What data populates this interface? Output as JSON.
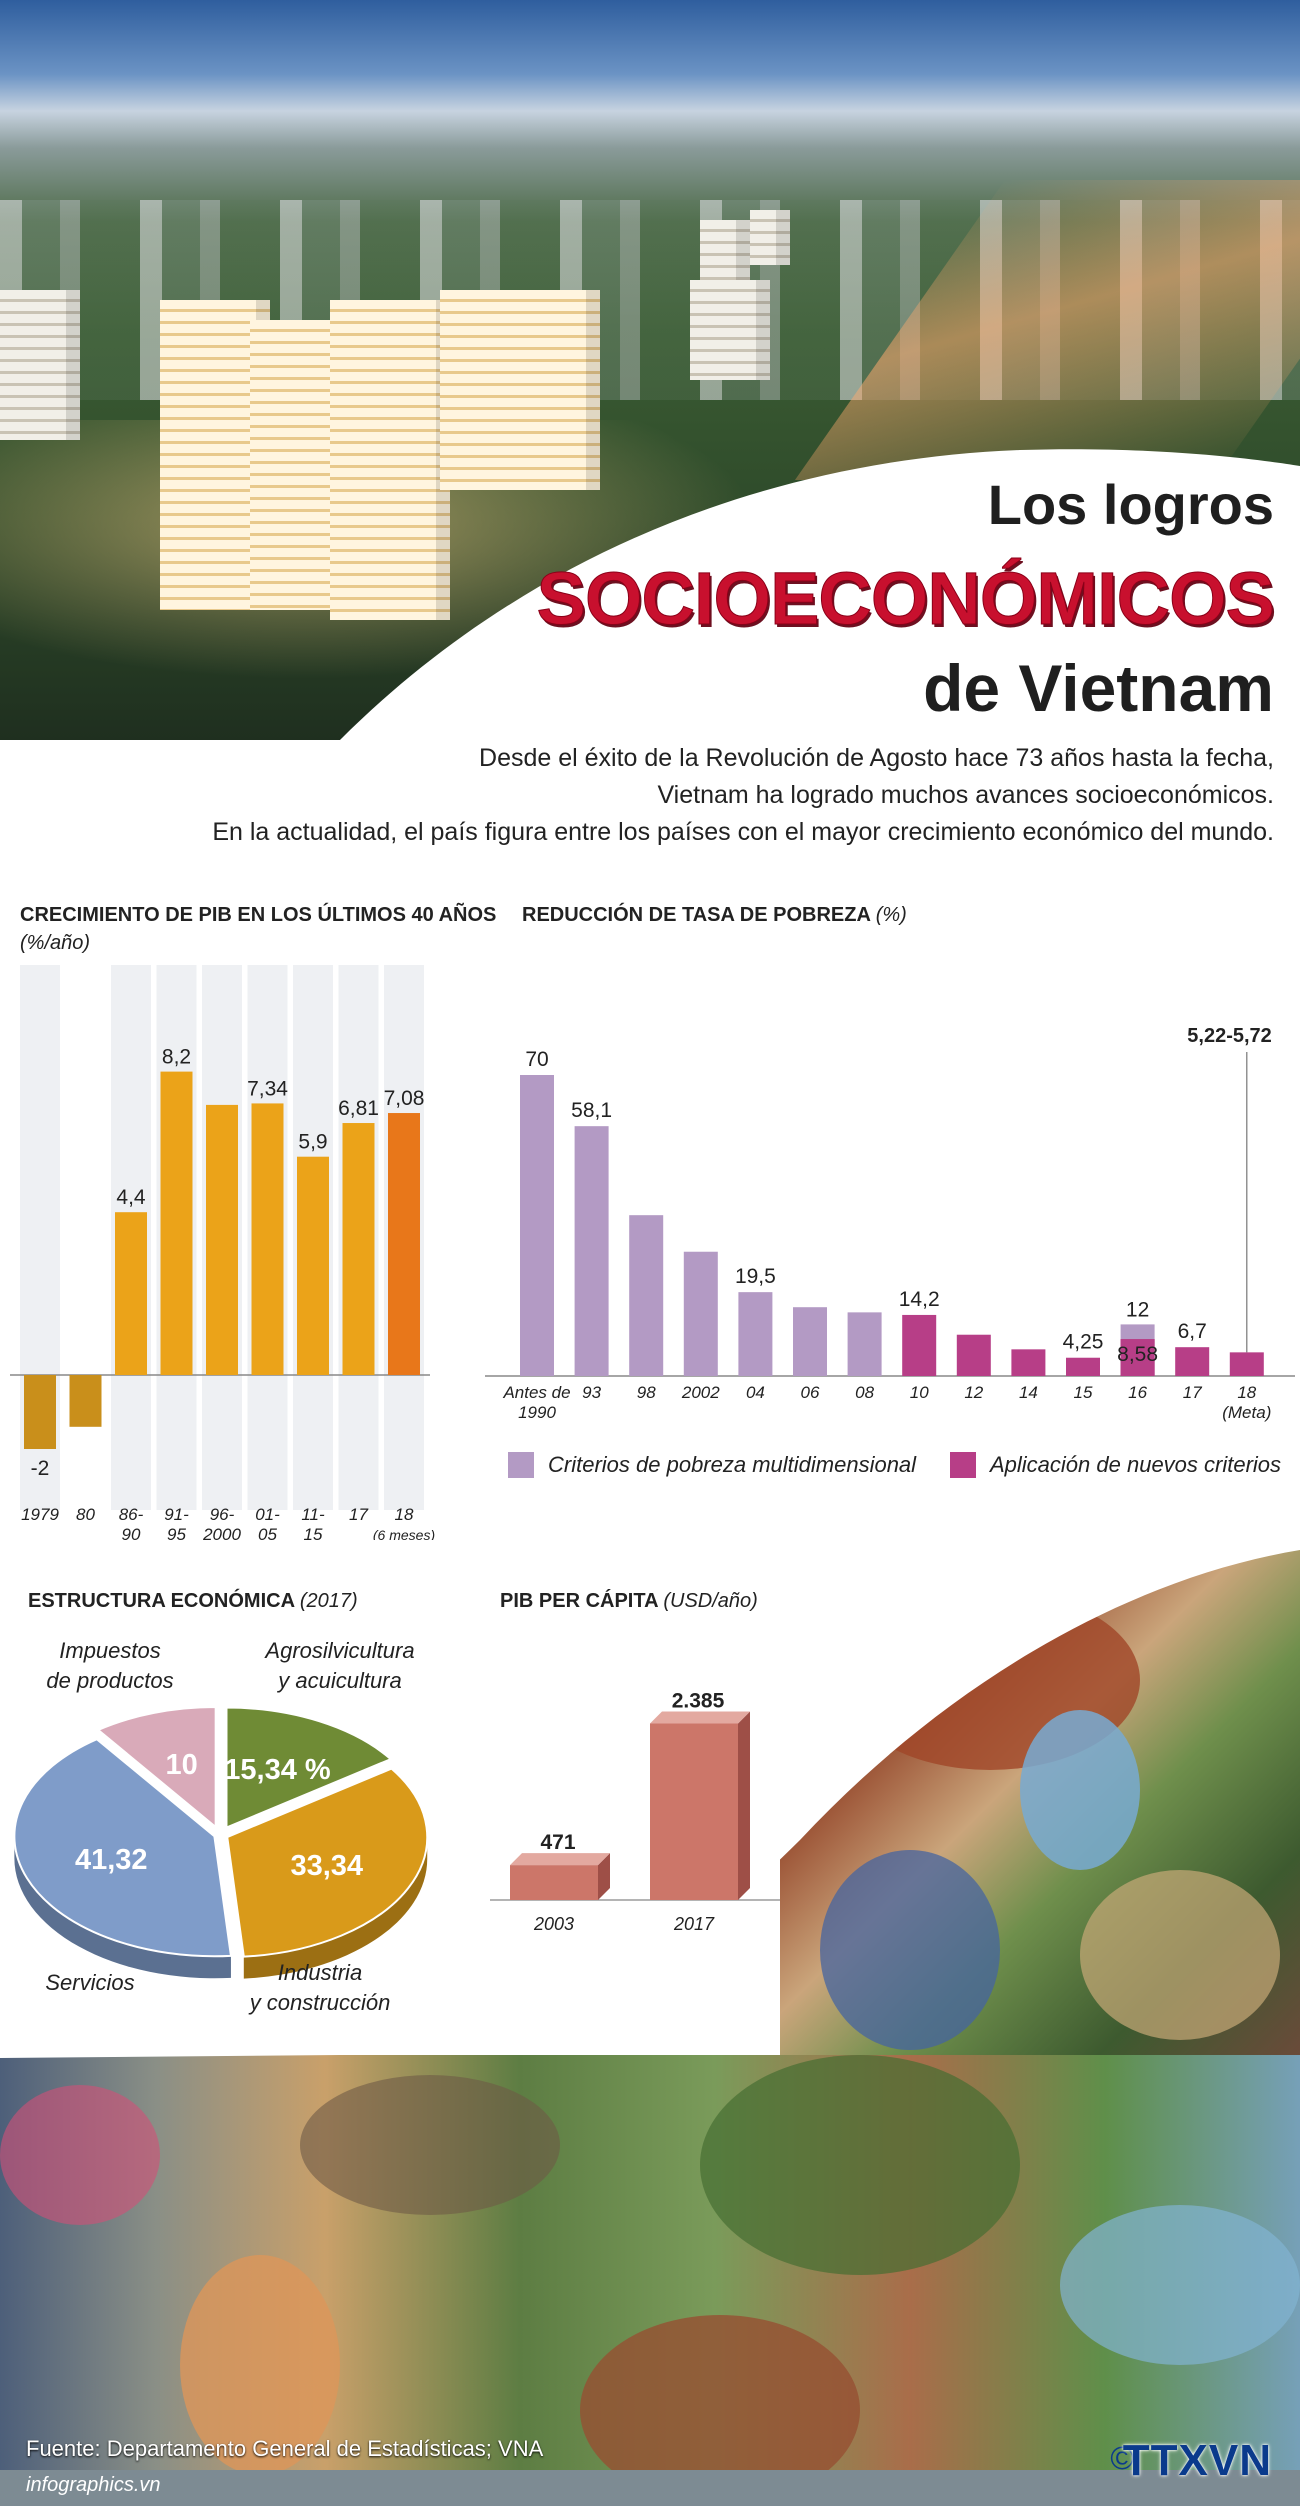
{
  "header": {
    "title_line1": "Los logros",
    "title_line2": "SOCIOECONÓMICOS",
    "title_line3": "de Vietnam",
    "intro": [
      "Desde el éxito de la Revolución de Agosto hace 73 años hasta la fecha,",
      "Vietnam ha logrado muchos avances socioeconómicos.",
      "En la actualidad, el país figura entre los países con el mayor crecimiento económico del mundo."
    ]
  },
  "sections": {
    "gdp_title": "CRECIMIENTO DE PIB EN LOS ÚLTIMOS 40 AÑOS",
    "gdp_unit": "(%/año)",
    "poverty_title": "REDUCCIÓN DE TASA DE POBREZA",
    "poverty_unit": "(%)",
    "structure_title": "ESTRUCTURA ECONÓMICA",
    "structure_year": "(2017)",
    "percapita_title": "PIB PER CÁPITA",
    "percapita_unit": "(USD/año)"
  },
  "chart_data": [
    {
      "id": "gdp",
      "type": "bar",
      "title": "CRECIMIENTO DE PIB EN LOS ÚLTIMOS 40 AÑOS",
      "ylabel": "(%/año)",
      "categories": [
        [
          "1979"
        ],
        [
          "80"
        ],
        [
          "86-",
          "90"
        ],
        [
          "91-",
          "95"
        ],
        [
          "96-",
          "2000"
        ],
        [
          "01-",
          "05"
        ],
        [
          "11-",
          "15"
        ],
        [
          "17"
        ],
        [
          "18",
          "(6 meses)"
        ]
      ],
      "values": [
        -2,
        -1.4,
        4.4,
        8.2,
        7.3,
        7.34,
        5.9,
        6.81,
        7.08
      ],
      "labels": [
        "-2",
        "",
        "4,4",
        "8,2",
        "",
        "7,34",
        "5,9",
        "6,81",
        "7,08"
      ],
      "ylim": [
        -2.6,
        9.4
      ],
      "colors": {
        "negative": "#c98f1b",
        "positive": "#eba319",
        "highlight": "#e8771a",
        "column_bg": "#eef0f3"
      }
    },
    {
      "id": "poverty",
      "type": "bar",
      "title": "REDUCCIÓN DE TASA DE POBREZA",
      "ylabel": "(%)",
      "categories": [
        [
          "Antes de",
          "1990"
        ],
        [
          "93"
        ],
        [
          "98"
        ],
        [
          "2002"
        ],
        [
          "04"
        ],
        [
          "06"
        ],
        [
          "08"
        ],
        [
          "10"
        ],
        [
          "12"
        ],
        [
          "14"
        ],
        [
          "15"
        ],
        [
          "16"
        ],
        [
          "17"
        ],
        [
          "18",
          "(Meta)"
        ]
      ],
      "series": [
        {
          "name": "Criterios de pobreza multidimensional",
          "color": "#b39ac4",
          "values": [
            70,
            58.1,
            37.4,
            28.9,
            19.5,
            16,
            14.8,
            null,
            null,
            null,
            null,
            12,
            null,
            null
          ]
        },
        {
          "name": "Aplicación de nuevos criterios",
          "color": "#b73e87",
          "values": [
            null,
            null,
            null,
            null,
            null,
            null,
            null,
            14.2,
            9.6,
            6.2,
            4.25,
            8.58,
            6.7,
            5.5
          ]
        }
      ],
      "labels": {
        "0": "70",
        "1": "58,1",
        "4": "19,5",
        "7": "14,2",
        "10": "4,25",
        "11_top": "12",
        "11_inner": "8,58",
        "12": "6,7"
      },
      "target_label": "5,22-5,72",
      "ylim": [
        0,
        80
      ]
    },
    {
      "id": "structure",
      "type": "pie",
      "title": "ESTRUCTURA ECONÓMICA",
      "subtitle": "(2017)",
      "slices": [
        {
          "name": [
            "Agrosilvicultura",
            "y acuicultura"
          ],
          "value": 15.34,
          "label": "15,34 %",
          "color": "#6f8b35"
        },
        {
          "name": [
            "Industria",
            "y construcción"
          ],
          "value": 33.34,
          "label": "33,34",
          "color": "#d99a1a"
        },
        {
          "name": [
            "Servicios"
          ],
          "value": 41.32,
          "label": "41,32",
          "color": "#7f9cc9"
        },
        {
          "name": [
            "Impuestos",
            "de productos"
          ],
          "value": 10,
          "label": "10",
          "color": "#d9aab9"
        }
      ]
    },
    {
      "id": "percapita",
      "type": "bar",
      "title": "PIB PER CÁPITA",
      "ylabel": "(USD/año)",
      "categories": [
        "2003",
        "2017"
      ],
      "values": [
        471,
        2385
      ],
      "labels": [
        "471",
        "2.385"
      ],
      "ylim": [
        0,
        2600
      ],
      "color": "#cc7669"
    }
  ],
  "footer": {
    "source": "Fuente: Departamento General de Estadísticas; VNA",
    "url": "infographics.vn",
    "logo": "TTXVN",
    "copyright": "©"
  }
}
